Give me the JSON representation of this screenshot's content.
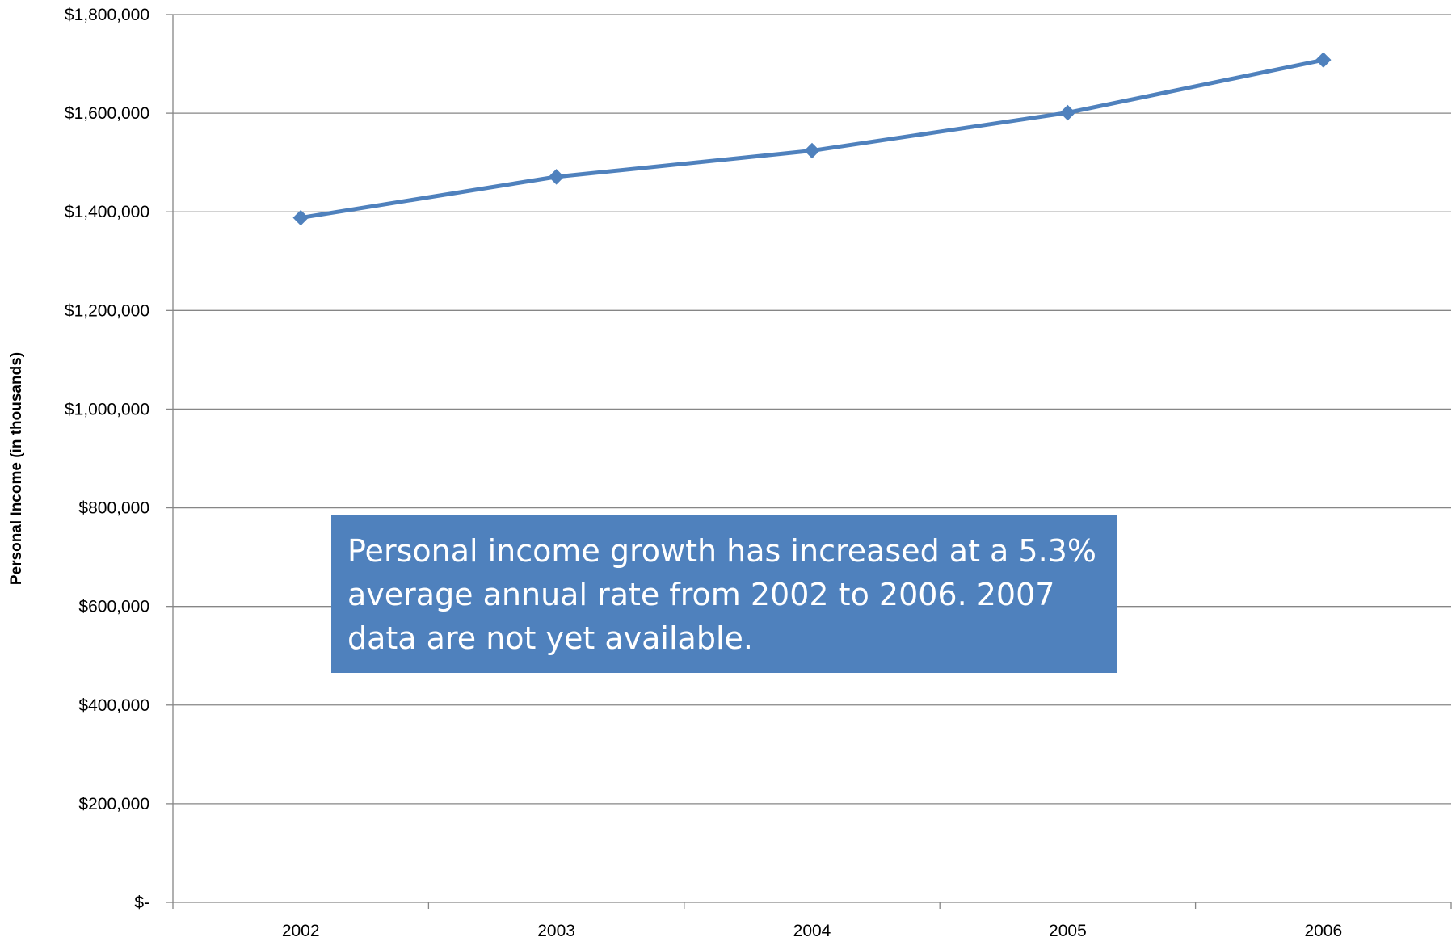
{
  "chart_data": {
    "type": "line",
    "categories": [
      "2002",
      "2003",
      "2004",
      "2005",
      "2006"
    ],
    "series": [
      {
        "values": [
          1388000,
          1471000,
          1524000,
          1601000,
          1708000
        ],
        "color": "#4F81BD",
        "marker": "diamond"
      }
    ],
    "ylabel": "Personal Income (in thousands)",
    "ylim": [
      0,
      1800000
    ],
    "yticks": [
      0,
      200000,
      400000,
      600000,
      800000,
      1000000,
      1200000,
      1400000,
      1600000,
      1800000
    ],
    "ytick_labels": [
      "$-",
      "$200,000",
      "$400,000",
      "$600,000",
      "$800,000",
      "$1,000,000",
      "$1,200,000",
      "$1,400,000",
      "$1,600,000",
      "$1,800,000"
    ],
    "grid": true,
    "legend": "none",
    "annotation": {
      "text": "Personal income growth has increased at a 5.3% average annual rate from 2002 to 2006.  2007 data are not yet available.",
      "background": "#4F81BD",
      "color": "#FFFFFF"
    }
  }
}
